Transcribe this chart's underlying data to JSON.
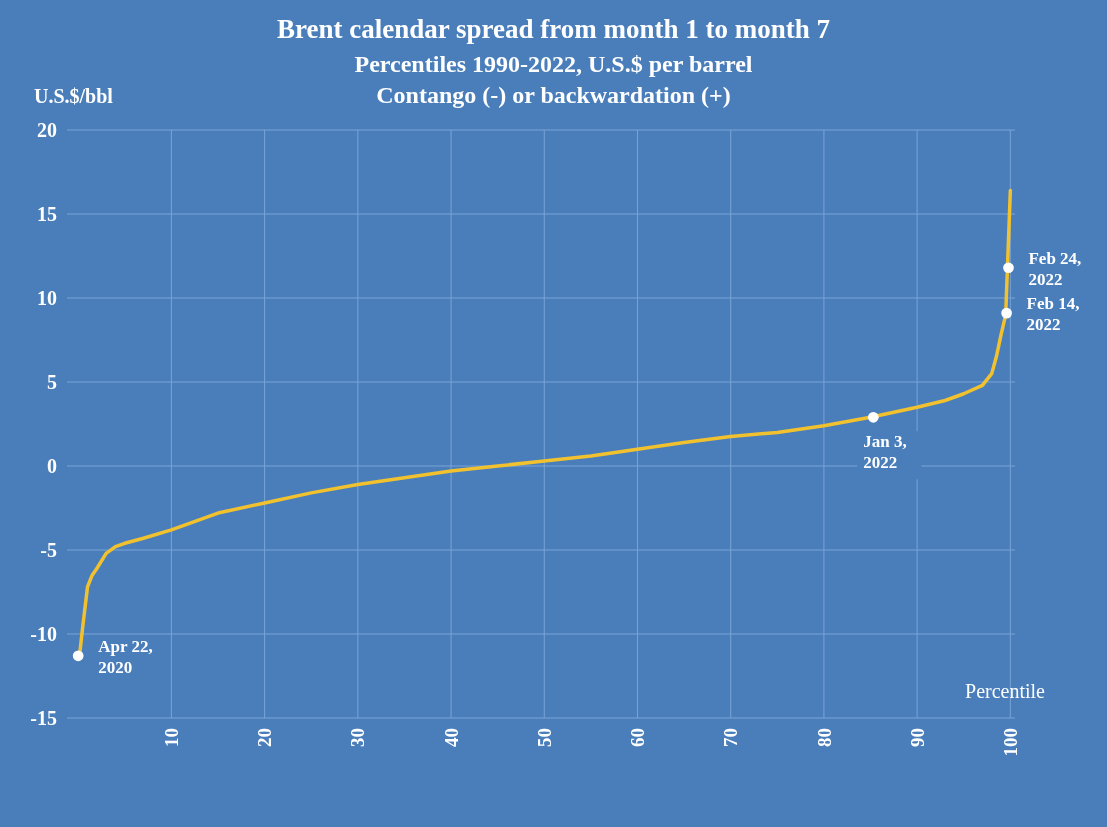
{
  "chart_data": {
    "type": "line",
    "title": "Brent calendar spread from month 1 to month 7",
    "subtitle": "Percentiles 1990-2022, U.S.$ per barrel\nContango (-) or backwardation (+)",
    "xlabel": "Percentile",
    "ylabel": "U.S.$/bbl",
    "xlim": [
      -1.2,
      100.5
    ],
    "xticks": [
      10,
      20,
      30,
      40,
      50,
      60,
      70,
      80,
      90,
      100
    ],
    "ylim": [
      -15,
      20
    ],
    "yticks": [
      -15,
      -10,
      -5,
      0,
      5,
      10,
      15,
      20
    ],
    "grid": true,
    "series": [
      {
        "type": "line",
        "color": "#f2c12e",
        "x": [
          0.2,
          0.5,
          1,
          1.5,
          2,
          3,
          4,
          5,
          7,
          10,
          15,
          20,
          25,
          30,
          35,
          40,
          45,
          50,
          55,
          60,
          65,
          70,
          75,
          80,
          85,
          90,
          93,
          95,
          97,
          98,
          98.5,
          99,
          99.5,
          100
        ],
        "values": [
          -11,
          -9.5,
          -7.2,
          -6.5,
          -6.1,
          -5.2,
          -4.8,
          -4.6,
          -4.3,
          -3.8,
          -2.8,
          -2.2,
          -1.6,
          -1.1,
          -0.7,
          -0.3,
          0,
          0.3,
          0.6,
          1,
          1.4,
          1.75,
          2,
          2.4,
          2.9,
          3.5,
          3.9,
          4.3,
          4.8,
          5.5,
          6.5,
          7.8,
          9,
          16.4
        ]
      },
      {
        "type": "scatter",
        "color": "#ffffff",
        "marker": "circle",
        "x": [
          0,
          85.3,
          99.6,
          99.8
        ],
        "values": [
          -11.3,
          2.9,
          9.1,
          11.8
        ]
      }
    ],
    "annotations": [
      {
        "text": "Apr 22,\n2020",
        "x": 0,
        "y": -11.3
      },
      {
        "text": "Jan 3,\n2022",
        "x": 85.3,
        "y": 2.9
      },
      {
        "text": "Feb 14,\n2022",
        "x": 99.6,
        "y": 9.1
      },
      {
        "text": "Feb 24,\n2022",
        "x": 99.8,
        "y": 11.8
      }
    ]
  }
}
